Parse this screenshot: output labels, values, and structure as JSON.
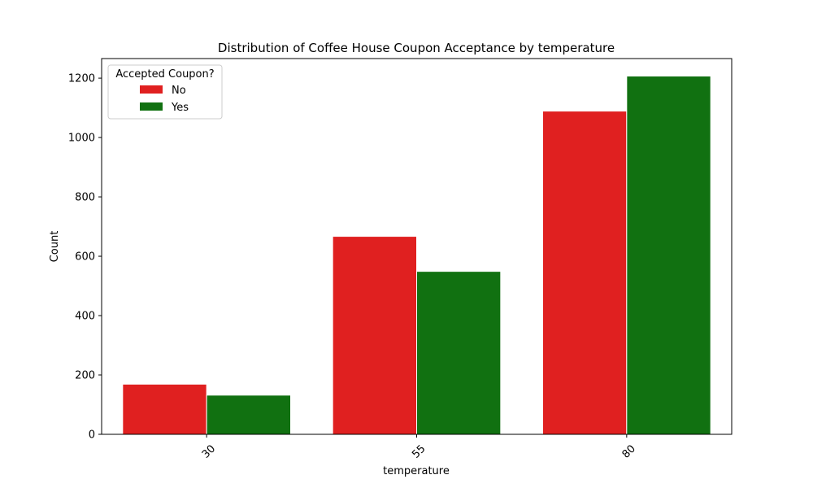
{
  "chart_data": {
    "type": "bar",
    "title": "Distribution of Coffee House Coupon Acceptance by temperature",
    "xlabel": "temperature",
    "ylabel": "Count",
    "categories": [
      "30",
      "55",
      "80"
    ],
    "series": [
      {
        "name": "No",
        "color": "#e02020",
        "values": [
          169,
          667,
          1089
        ]
      },
      {
        "name": "Yes",
        "color": "#117111",
        "values": [
          132,
          549,
          1207
        ]
      }
    ],
    "ylim": [
      0,
      1266
    ],
    "yticks": [
      0,
      200,
      400,
      600,
      800,
      1000,
      1200
    ],
    "x_tick_rotation": "45 degrees",
    "legend": {
      "title": "Accepted Coupon?",
      "placement": "top-left"
    },
    "grid": false
  }
}
